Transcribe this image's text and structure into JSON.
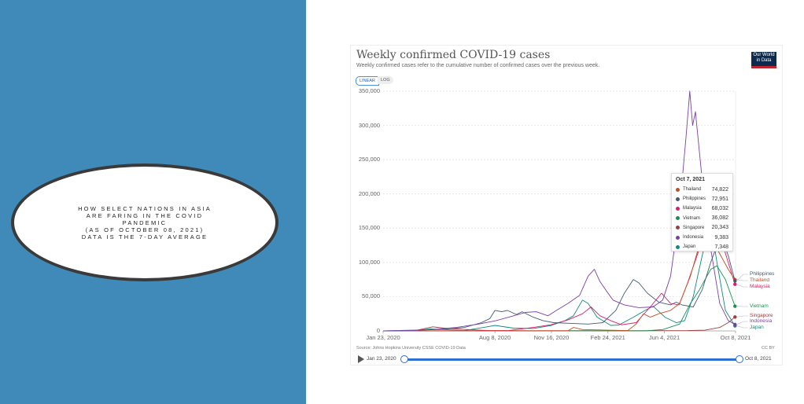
{
  "slide": {
    "text": "HOW SELECT NATIONS IN ASIA\nARE FARING IN THE COVID\nPANDEMIC\n(AS OF OCTOBER 08, 2021)\nDATA IS THE 7-DAY AVERAGE"
  },
  "chart_header": {
    "title": "Weekly confirmed COVID-19 cases",
    "subtitle": "Weekly confirmed cases refer to the cumulative number of confirmed cases over the previous week.",
    "logo_text": "Our World in Data",
    "linear_label": "LINEAR",
    "log_label": "LOG",
    "scale_selected": "LINEAR"
  },
  "footer": {
    "source": "Source: Johns Hopkins University CSSE COVID-19 Data",
    "license": "CC BY"
  },
  "timeline": {
    "start": "Jan 23, 2020",
    "end": "Oct 8, 2021",
    "selected_range_fraction": [
      0,
      1
    ]
  },
  "tooltip": {
    "date": "Oct 7, 2021",
    "rows": [
      {
        "name": "Thailand",
        "value": "74,822"
      },
      {
        "name": "Philippines",
        "value": "72,951"
      },
      {
        "name": "Malaysia",
        "value": "68,032"
      },
      {
        "name": "Vietnam",
        "value": "36,082"
      },
      {
        "name": "Singapore",
        "value": "20,343"
      },
      {
        "name": "Indonesia",
        "value": "9,383"
      },
      {
        "name": "Japan",
        "value": "7,348"
      }
    ]
  },
  "chart_data": {
    "type": "line",
    "title": "Weekly confirmed COVID-19 cases",
    "xlim": [
      "2020-01-23",
      "2021-10-08"
    ],
    "ylim": [
      0,
      350000
    ],
    "yticks": [
      "0",
      "50,000",
      "100,000",
      "150,000",
      "200,000",
      "250,000",
      "300,000",
      "350,000"
    ],
    "xticks": [
      {
        "date": "2020-01-23",
        "label": "Jan 23, 2020"
      },
      {
        "date": "2020-08-08",
        "label": "Aug 8, 2020"
      },
      {
        "date": "2020-11-16",
        "label": "Nov 16, 2020"
      },
      {
        "date": "2021-02-24",
        "label": "Feb 24, 2021"
      },
      {
        "date": "2021-06-04",
        "label": "Jun 4, 2021"
      },
      {
        "date": "2021-10-08",
        "label": "Oct 8, 2021"
      }
    ],
    "grid": true,
    "legend": "right-end labels",
    "series": [
      {
        "name": "Singapore",
        "color": "#9a3e3e",
        "points": [
          [
            "2020-01-23",
            0
          ],
          [
            "2020-03-20",
            500
          ],
          [
            "2020-04-20",
            6000
          ],
          [
            "2020-05-10",
            4000
          ],
          [
            "2020-06-20",
            2000
          ],
          [
            "2020-08-01",
            300
          ],
          [
            "2021-07-15",
            500
          ],
          [
            "2021-08-15",
            1000
          ],
          [
            "2021-09-10",
            5000
          ],
          [
            "2021-09-25",
            12000
          ],
          [
            "2021-10-07",
            20343
          ]
        ]
      },
      {
        "name": "Vietnam",
        "color": "#16924f",
        "points": [
          [
            "2020-01-23",
            0
          ],
          [
            "2021-05-01",
            100
          ],
          [
            "2021-06-01",
            2000
          ],
          [
            "2021-07-01",
            10000
          ],
          [
            "2021-07-20",
            40000
          ],
          [
            "2021-08-05",
            60000
          ],
          [
            "2021-08-25",
            90000
          ],
          [
            "2021-09-05",
            95000
          ],
          [
            "2021-09-20",
            75000
          ],
          [
            "2021-10-07",
            36082
          ]
        ]
      },
      {
        "name": "Japan",
        "color": "#10897f",
        "points": [
          [
            "2020-01-23",
            0
          ],
          [
            "2020-03-20",
            500
          ],
          [
            "2020-04-15",
            3000
          ],
          [
            "2020-06-15",
            500
          ],
          [
            "2020-07-25",
            6000
          ],
          [
            "2020-08-08",
            8000
          ],
          [
            "2020-09-10",
            4000
          ],
          [
            "2020-10-15",
            3500
          ],
          [
            "2020-11-16",
            8000
          ],
          [
            "2020-12-10",
            15000
          ],
          [
            "2020-12-25",
            22000
          ],
          [
            "2021-01-10",
            45000
          ],
          [
            "2021-01-20",
            40000
          ],
          [
            "2021-02-05",
            20000
          ],
          [
            "2021-03-01",
            8000
          ],
          [
            "2021-03-15",
            8500
          ],
          [
            "2021-04-10",
            20000
          ],
          [
            "2021-05-01",
            30000
          ],
          [
            "2021-05-15",
            36000
          ],
          [
            "2021-06-05",
            20000
          ],
          [
            "2021-06-25",
            12000
          ],
          [
            "2021-07-10",
            15000
          ],
          [
            "2021-07-25",
            50000
          ],
          [
            "2021-08-10",
            110000
          ],
          [
            "2021-08-25",
            160000
          ],
          [
            "2021-09-05",
            100000
          ],
          [
            "2021-09-20",
            30000
          ],
          [
            "2021-10-07",
            7348
          ]
        ]
      },
      {
        "name": "Malaysia",
        "color": "#e01a6f",
        "points": [
          [
            "2020-01-23",
            0
          ],
          [
            "2020-09-01",
            500
          ],
          [
            "2020-10-15",
            5000
          ],
          [
            "2020-11-15",
            9000
          ],
          [
            "2020-12-15",
            16000
          ],
          [
            "2021-01-10",
            25000
          ],
          [
            "2021-01-25",
            35000
          ],
          [
            "2021-02-10",
            22000
          ],
          [
            "2021-03-01",
            15000
          ],
          [
            "2021-03-20",
            9000
          ],
          [
            "2021-04-15",
            12000
          ],
          [
            "2021-05-10",
            35000
          ],
          [
            "2021-05-30",
            55000
          ],
          [
            "2021-06-15",
            40000
          ],
          [
            "2021-06-30",
            38000
          ],
          [
            "2021-07-15",
            70000
          ],
          [
            "2021-08-05",
            120000
          ],
          [
            "2021-08-25",
            150000
          ],
          [
            "2021-09-10",
            140000
          ],
          [
            "2021-09-25",
            100000
          ],
          [
            "2021-10-07",
            68032
          ]
        ]
      },
      {
        "name": "Thailand",
        "color": "#c74d20",
        "points": [
          [
            "2020-01-23",
            0
          ],
          [
            "2020-12-15",
            0
          ],
          [
            "2020-12-25",
            5000
          ],
          [
            "2021-01-10",
            2000
          ],
          [
            "2021-03-31",
            500
          ],
          [
            "2021-04-15",
            10000
          ],
          [
            "2021-04-28",
            25000
          ],
          [
            "2021-05-10",
            20000
          ],
          [
            "2021-05-25",
            25000
          ],
          [
            "2021-06-15",
            30000
          ],
          [
            "2021-07-01",
            40000
          ],
          [
            "2021-07-20",
            80000
          ],
          [
            "2021-08-10",
            140000
          ],
          [
            "2021-08-20",
            150000
          ],
          [
            "2021-09-05",
            120000
          ],
          [
            "2021-09-25",
            90000
          ],
          [
            "2021-10-07",
            74822
          ]
        ]
      },
      {
        "name": "Philippines",
        "color": "#435a74",
        "points": [
          [
            "2020-01-23",
            0
          ],
          [
            "2020-05-01",
            2000
          ],
          [
            "2020-06-15",
            5000
          ],
          [
            "2020-07-15",
            12000
          ],
          [
            "2020-07-30",
            18000
          ],
          [
            "2020-08-08",
            30000
          ],
          [
            "2020-08-20",
            28000
          ],
          [
            "2020-08-30",
            30000
          ],
          [
            "2020-09-15",
            24000
          ],
          [
            "2020-09-25",
            28000
          ],
          [
            "2020-10-15",
            20000
          ],
          [
            "2020-11-01",
            15000
          ],
          [
            "2020-11-20",
            12000
          ],
          [
            "2020-12-20",
            11000
          ],
          [
            "2021-01-20",
            10000
          ],
          [
            "2021-02-15",
            12000
          ],
          [
            "2021-03-10",
            30000
          ],
          [
            "2021-03-25",
            55000
          ],
          [
            "2021-04-10",
            75000
          ],
          [
            "2021-04-20",
            70000
          ],
          [
            "2021-05-05",
            55000
          ],
          [
            "2021-05-25",
            42000
          ],
          [
            "2021-06-15",
            38000
          ],
          [
            "2021-06-25",
            42000
          ],
          [
            "2021-07-05",
            38000
          ],
          [
            "2021-07-25",
            35000
          ],
          [
            "2021-08-10",
            60000
          ],
          [
            "2021-08-25",
            100000
          ],
          [
            "2021-09-12",
            140000
          ],
          [
            "2021-09-25",
            110000
          ],
          [
            "2021-10-07",
            72951
          ]
        ]
      },
      {
        "name": "Indonesia",
        "color": "#7a3fa6",
        "points": [
          [
            "2020-01-23",
            0
          ],
          [
            "2020-03-15",
            500
          ],
          [
            "2020-04-20",
            2000
          ],
          [
            "2020-06-01",
            5000
          ],
          [
            "2020-07-10",
            10000
          ],
          [
            "2020-08-10",
            15000
          ],
          [
            "2020-09-10",
            22000
          ],
          [
            "2020-10-01",
            27000
          ],
          [
            "2020-10-20",
            28000
          ],
          [
            "2020-11-10",
            22000
          ],
          [
            "2020-11-25",
            30000
          ],
          [
            "2020-12-15",
            40000
          ],
          [
            "2021-01-05",
            52000
          ],
          [
            "2021-01-20",
            80000
          ],
          [
            "2021-01-31",
            90000
          ],
          [
            "2021-02-10",
            72000
          ],
          [
            "2021-02-20",
            60000
          ],
          [
            "2021-03-05",
            45000
          ],
          [
            "2021-03-25",
            38000
          ],
          [
            "2021-04-20",
            34000
          ],
          [
            "2021-05-15",
            35000
          ],
          [
            "2021-06-01",
            45000
          ],
          [
            "2021-06-15",
            80000
          ],
          [
            "2021-06-30",
            170000
          ],
          [
            "2021-07-12",
            280000
          ],
          [
            "2021-07-19",
            350000
          ],
          [
            "2021-07-24",
            300000
          ],
          [
            "2021-07-29",
            320000
          ],
          [
            "2021-08-10",
            220000
          ],
          [
            "2021-08-25",
            120000
          ],
          [
            "2021-09-10",
            40000
          ],
          [
            "2021-09-25",
            15000
          ],
          [
            "2021-10-07",
            9383
          ]
        ]
      }
    ]
  }
}
